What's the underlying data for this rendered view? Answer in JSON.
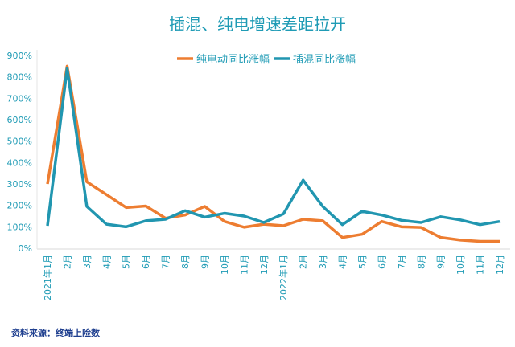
{
  "chart_data": {
    "type": "line",
    "title": "插混、纯电增速差距拉开",
    "categories": [
      "2021年1月",
      "2月",
      "3月",
      "4月",
      "5月",
      "6月",
      "7月",
      "8月",
      "9月",
      "10月",
      "11月",
      "12月",
      "2022年1月",
      "2月",
      "3月",
      "4月",
      "5月",
      "6月",
      "7月",
      "8月",
      "9月",
      "10月",
      "11月",
      "12月"
    ],
    "series": [
      {
        "name": "纯电动同比涨幅",
        "color": "#ed7d31",
        "values": [
          300,
          850,
          310,
          250,
          190,
          197,
          140,
          155,
          195,
          125,
          98,
          112,
          105,
          135,
          128,
          50,
          65,
          125,
          100,
          97,
          50,
          38,
          32,
          32
        ]
      },
      {
        "name": "插混同比涨幅",
        "color": "#2196b0",
        "values": [
          105,
          840,
          195,
          112,
          100,
          128,
          135,
          175,
          145,
          163,
          150,
          120,
          160,
          318,
          195,
          110,
          172,
          155,
          130,
          120,
          147,
          132,
          110,
          125
        ]
      }
    ],
    "yticks": [
      "0%",
      "100%",
      "200%",
      "300%",
      "400%",
      "500%",
      "600%",
      "700%",
      "800%",
      "900%"
    ],
    "ylim": [
      0,
      900
    ],
    "grid": false,
    "legend": "top-right"
  },
  "source": "资料来源：终端上险数"
}
